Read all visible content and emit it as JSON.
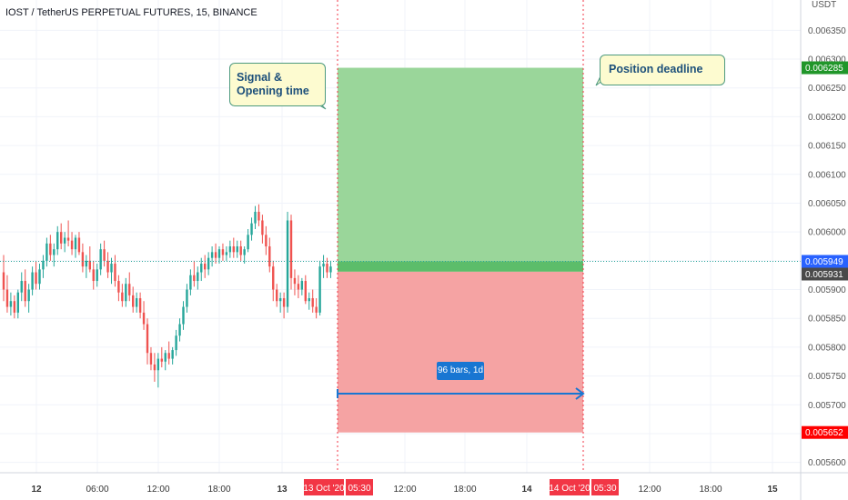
{
  "header": {
    "title": "IOST / TetherUS PERPETUAL FUTURES, 15, BINANCE",
    "scale_label": "USDT"
  },
  "colors": {
    "bull": "#26a69a",
    "bear": "#ef5350",
    "profit_zone": "#9ad69a",
    "loss_zone": "#f5a3a3",
    "entry_band": "#5cbd6a",
    "marker_red": "#f23645",
    "accent_blue": "#1976d2",
    "last_price_tag": "#2962ff",
    "target_tag": "#21962a",
    "stop_tag": "#ff0000",
    "current_tag": "#4a4a4a"
  },
  "annotations": {
    "signal_line1": "Signal &",
    "signal_line2": "Opening time",
    "deadline": "Position deadline",
    "measure": "96 bars, 1d"
  },
  "chart_data": {
    "type": "candlestick",
    "title": "IOST / TetherUS PERPETUAL FUTURES, 15, BINANCE",
    "ylabel": "USDT",
    "ylim": [
      0.00559,
      0.00639
    ],
    "y_ticks": [
      "0.006350",
      "0.006300",
      "0.006250",
      "0.006200",
      "0.006150",
      "0.006100",
      "0.006050",
      "0.006000",
      "0.005950",
      "0.005900",
      "0.005850",
      "0.005800",
      "0.005750",
      "0.005700",
      "0.005650",
      "0.005600"
    ],
    "x_ticks": [
      "12",
      "06:00",
      "12:00",
      "18:00",
      "13",
      "12:00",
      "18:00",
      "14",
      "12:00",
      "18:00",
      "15"
    ],
    "x_highlight_labels": [
      "13 Oct '20",
      "05:30",
      "14 Oct '20",
      "05:30"
    ],
    "price_labels": {
      "target": "0.006285",
      "last": "0.005949",
      "current": "0.005931",
      "stop": "0.005652"
    },
    "grid": true,
    "position": {
      "entry": 0.005949,
      "entry_band_low": 0.005931,
      "target": 0.006285,
      "stop": 0.005652,
      "bars": 96,
      "duration": "1d"
    },
    "candles": [
      [
        0.00593,
        0.00596,
        0.00588,
        0.0059
      ],
      [
        0.0059,
        0.005925,
        0.00586,
        0.00587
      ],
      [
        0.00587,
        0.005895,
        0.005855,
        0.00588
      ],
      [
        0.00588,
        0.00589,
        0.00585,
        0.00586
      ],
      [
        0.00586,
        0.0059,
        0.00585,
        0.005895
      ],
      [
        0.005895,
        0.00593,
        0.00588,
        0.005915
      ],
      [
        0.005915,
        0.005935,
        0.00587,
        0.00588
      ],
      [
        0.00588,
        0.00591,
        0.00586,
        0.0059
      ],
      [
        0.0059,
        0.00594,
        0.00589,
        0.00593
      ],
      [
        0.00593,
        0.00595,
        0.0059,
        0.00591
      ],
      [
        0.00591,
        0.005945,
        0.0059,
        0.005935
      ],
      [
        0.005935,
        0.00596,
        0.00592,
        0.00595
      ],
      [
        0.00595,
        0.00599,
        0.00594,
        0.00598
      ],
      [
        0.00598,
        0.005995,
        0.00595,
        0.00596
      ],
      [
        0.00596,
        0.00598,
        0.00594,
        0.00597
      ],
      [
        0.00597,
        0.00601,
        0.00596,
        0.006
      ],
      [
        0.006,
        0.006015,
        0.00597,
        0.00598
      ],
      [
        0.00598,
        0.006,
        0.005965,
        0.00599
      ],
      [
        0.00599,
        0.00602,
        0.005975,
        0.005985
      ],
      [
        0.005985,
        0.006,
        0.00596,
        0.00597
      ],
      [
        0.00597,
        0.005995,
        0.005955,
        0.00599
      ],
      [
        0.00599,
        0.006,
        0.00596,
        0.005965
      ],
      [
        0.005965,
        0.00598,
        0.00593,
        0.00594
      ],
      [
        0.00594,
        0.00596,
        0.00592,
        0.00595
      ],
      [
        0.00595,
        0.005975,
        0.00593,
        0.005935
      ],
      [
        0.005935,
        0.00595,
        0.0059,
        0.005915
      ],
      [
        0.005915,
        0.005945,
        0.005905,
        0.005935
      ],
      [
        0.005935,
        0.00598,
        0.005925,
        0.00597
      ],
      [
        0.00597,
        0.005985,
        0.00594,
        0.00595
      ],
      [
        0.00595,
        0.005965,
        0.00592,
        0.00593
      ],
      [
        0.00593,
        0.005955,
        0.00591,
        0.005945
      ],
      [
        0.005945,
        0.00596,
        0.005905,
        0.005915
      ],
      [
        0.005915,
        0.005925,
        0.00588,
        0.005895
      ],
      [
        0.005895,
        0.00591,
        0.00587,
        0.00588
      ],
      [
        0.00588,
        0.00592,
        0.00587,
        0.00591
      ],
      [
        0.00591,
        0.00593,
        0.00588,
        0.00589
      ],
      [
        0.00589,
        0.005905,
        0.00586,
        0.00587
      ],
      [
        0.00587,
        0.005895,
        0.00586,
        0.005885
      ],
      [
        0.005885,
        0.005895,
        0.00585,
        0.00586
      ],
      [
        0.00586,
        0.00588,
        0.00583,
        0.00584
      ],
      [
        0.00584,
        0.00585,
        0.00577,
        0.00579
      ],
      [
        0.00579,
        0.0058,
        0.00576,
        0.00577
      ],
      [
        0.00577,
        0.00579,
        0.00574,
        0.00576
      ],
      [
        0.00576,
        0.00579,
        0.00573,
        0.00578
      ],
      [
        0.00578,
        0.0058,
        0.005765,
        0.005775
      ],
      [
        0.005775,
        0.005795,
        0.00576,
        0.00579
      ],
      [
        0.00579,
        0.00581,
        0.00577,
        0.00578
      ],
      [
        0.00578,
        0.0058,
        0.00577,
        0.005795
      ],
      [
        0.005795,
        0.00583,
        0.005785,
        0.00582
      ],
      [
        0.00582,
        0.00585,
        0.00581,
        0.00584
      ],
      [
        0.00584,
        0.00588,
        0.00583,
        0.00587
      ],
      [
        0.00587,
        0.00591,
        0.00586,
        0.0059
      ],
      [
        0.0059,
        0.005935,
        0.00589,
        0.005925
      ],
      [
        0.005925,
        0.00595,
        0.005905,
        0.005915
      ],
      [
        0.005915,
        0.00594,
        0.0059,
        0.00593
      ],
      [
        0.00593,
        0.005955,
        0.005915,
        0.005945
      ],
      [
        0.005945,
        0.00596,
        0.00592,
        0.005935
      ],
      [
        0.005935,
        0.005965,
        0.005925,
        0.005955
      ],
      [
        0.005955,
        0.005975,
        0.00594,
        0.005965
      ],
      [
        0.005965,
        0.00598,
        0.005945,
        0.005955
      ],
      [
        0.005955,
        0.005975,
        0.005945,
        0.00597
      ],
      [
        0.00597,
        0.00598,
        0.00595,
        0.00596
      ],
      [
        0.00596,
        0.005975,
        0.00595,
        0.005965
      ],
      [
        0.005965,
        0.005985,
        0.005955,
        0.005975
      ],
      [
        0.005975,
        0.00599,
        0.005955,
        0.005965
      ],
      [
        0.005965,
        0.005985,
        0.005955,
        0.005975
      ],
      [
        0.005975,
        0.005985,
        0.00595,
        0.00596
      ],
      [
        0.00596,
        0.005975,
        0.005945,
        0.00597
      ],
      [
        0.00597,
        0.006005,
        0.005965,
        0.005995
      ],
      [
        0.005995,
        0.006025,
        0.005985,
        0.006015
      ],
      [
        0.006015,
        0.006045,
        0.006005,
        0.006035
      ],
      [
        0.006035,
        0.006048,
        0.00601,
        0.00602
      ],
      [
        0.00602,
        0.00603,
        0.00598,
        0.005995
      ],
      [
        0.005995,
        0.00601,
        0.00596,
        0.005975
      ],
      [
        0.005975,
        0.00599,
        0.00593,
        0.00594
      ],
      [
        0.00594,
        0.00595,
        0.00588,
        0.0059
      ],
      [
        0.0059,
        0.00591,
        0.00587,
        0.00588
      ],
      [
        0.00588,
        0.005895,
        0.00586,
        0.005885
      ],
      [
        0.005885,
        0.005895,
        0.00585,
        0.00587
      ],
      [
        0.00587,
        0.006035,
        0.00586,
        0.00602
      ],
      [
        0.00602,
        0.00603,
        0.0059,
        0.00592
      ],
      [
        0.00592,
        0.005935,
        0.00589,
        0.00591
      ],
      [
        0.00591,
        0.005925,
        0.005885,
        0.0059
      ],
      [
        0.0059,
        0.00592,
        0.00589,
        0.005915
      ],
      [
        0.005915,
        0.005925,
        0.005875,
        0.00588
      ],
      [
        0.00588,
        0.005895,
        0.005865,
        0.005885
      ],
      [
        0.005885,
        0.0059,
        0.00586,
        0.00587
      ],
      [
        0.00587,
        0.005885,
        0.00585,
        0.00586
      ],
      [
        0.00586,
        0.00595,
        0.005855,
        0.00594
      ],
      [
        0.00594,
        0.00596,
        0.00592,
        0.005945
      ],
      [
        0.005945,
        0.005955,
        0.00592,
        0.00593
      ],
      [
        0.00593,
        0.00595,
        0.00592,
        0.00594
      ]
    ]
  }
}
